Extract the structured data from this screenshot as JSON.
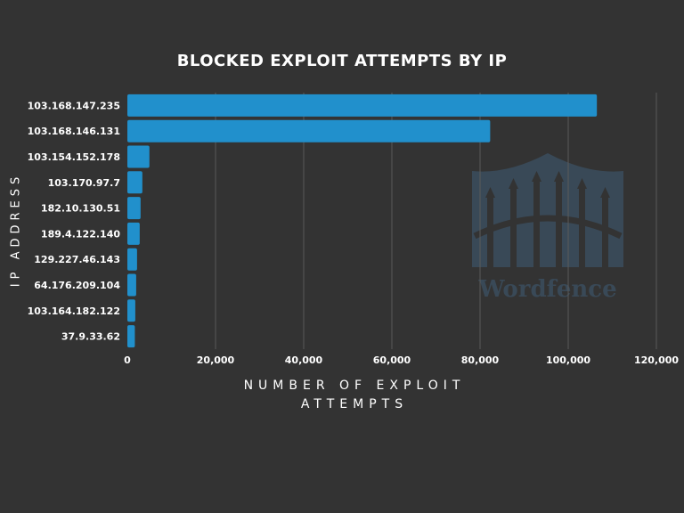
{
  "chart_data": {
    "type": "bar",
    "orientation": "horizontal",
    "title": "BLOCKED EXPLOIT ATTEMPTS BY IP",
    "xlabel": "NUMBER OF EXPLOIT ATTEMPTS",
    "ylabel": "IP ADDRESS",
    "categories": [
      "103.168.147.235",
      "103.168.146.131",
      "103.154.152.178",
      "103.170.97.7",
      "182.10.130.51",
      "189.4.122.140",
      "129.227.46.143",
      "64.176.209.104",
      "103.164.182.122",
      "37.9.33.62"
    ],
    "values": [
      106500,
      82300,
      5000,
      3400,
      3000,
      2800,
      2200,
      2000,
      1800,
      1700
    ],
    "xlim": [
      0,
      120000
    ],
    "xticks": [
      0,
      20000,
      40000,
      60000,
      80000,
      100000,
      120000
    ],
    "xtick_labels": [
      "0",
      "20,000",
      "40,000",
      "60,000",
      "80,000",
      "100,000",
      "120,000"
    ],
    "grid": "vertical",
    "bar_color": "#2190cc",
    "background": "#333333"
  },
  "watermark": {
    "text": "Wordfence"
  }
}
